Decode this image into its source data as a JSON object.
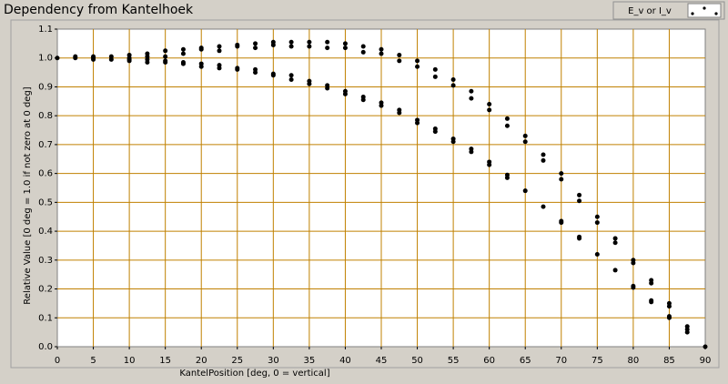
{
  "chart_data": {
    "type": "scatter",
    "title": "Dependency from Kantelhoek",
    "x_label": "KantelPosition [deg, 0 = vertical]",
    "y_label": "Relative Value [0 deg = 1.0 if not zero at 0 deg]",
    "series": [
      {
        "name": "E_v or I_v",
        "color": "#000000",
        "x": [
          0,
          2.5,
          2.5,
          5,
          5,
          5,
          7.5,
          7.5,
          10,
          10,
          10,
          10,
          12.5,
          12.5,
          12.5,
          12.5,
          15,
          15,
          15,
          15,
          17.5,
          17.5,
          17.5,
          17.5,
          20,
          20,
          20,
          20,
          22.5,
          22.5,
          22.5,
          22.5,
          25,
          25,
          25,
          25,
          27.5,
          27.5,
          27.5,
          27.5,
          30,
          30,
          30,
          30,
          32.5,
          32.5,
          32.5,
          32.5,
          35,
          35,
          35,
          35,
          37.5,
          37.5,
          37.5,
          37.5,
          40,
          40,
          40,
          40,
          42.5,
          42.5,
          42.5,
          42.5,
          45,
          45,
          45,
          45,
          47.5,
          47.5,
          47.5,
          47.5,
          50,
          50,
          50,
          50,
          52.5,
          52.5,
          52.5,
          52.5,
          55,
          55,
          55,
          55,
          57.5,
          57.5,
          57.5,
          57.5,
          60,
          60,
          60,
          60,
          62.5,
          62.5,
          62.5,
          62.5,
          65,
          65,
          65,
          67.5,
          67.5,
          67.5,
          70,
          70,
          70,
          70,
          72.5,
          72.5,
          72.5,
          72.5,
          75,
          75,
          75,
          77.5,
          77.5,
          77.5,
          80,
          80,
          80,
          80,
          82.5,
          82.5,
          82.5,
          82.5,
          85,
          85,
          85,
          85,
          87.5,
          87.5,
          87.5,
          90
        ],
        "values": [
          1.0,
          1.005,
          1.0,
          1.005,
          1.0,
          0.995,
          1.005,
          0.995,
          1.01,
          1.0,
          0.995,
          0.99,
          1.015,
          1.005,
          0.995,
          0.985,
          1.025,
          1.005,
          0.99,
          0.985,
          1.03,
          1.015,
          0.985,
          0.98,
          1.035,
          1.03,
          0.98,
          0.97,
          1.04,
          1.025,
          0.975,
          0.965,
          1.045,
          1.04,
          0.965,
          0.96,
          1.05,
          1.035,
          0.96,
          0.95,
          1.055,
          1.045,
          0.945,
          0.94,
          1.055,
          1.04,
          0.94,
          0.925,
          1.055,
          1.04,
          0.92,
          0.91,
          1.055,
          1.035,
          0.905,
          0.895,
          1.05,
          1.035,
          0.885,
          0.875,
          1.04,
          1.02,
          0.865,
          0.855,
          1.03,
          1.015,
          0.845,
          0.835,
          1.01,
          0.99,
          0.82,
          0.81,
          0.99,
          0.97,
          0.785,
          0.775,
          0.96,
          0.935,
          0.755,
          0.745,
          0.925,
          0.905,
          0.72,
          0.71,
          0.885,
          0.86,
          0.685,
          0.675,
          0.84,
          0.82,
          0.64,
          0.63,
          0.79,
          0.765,
          0.595,
          0.585,
          0.73,
          0.71,
          0.54,
          0.665,
          0.645,
          0.485,
          0.6,
          0.58,
          0.435,
          0.43,
          0.525,
          0.505,
          0.38,
          0.375,
          0.45,
          0.43,
          0.32,
          0.375,
          0.36,
          0.265,
          0.3,
          0.29,
          0.21,
          0.205,
          0.23,
          0.22,
          0.16,
          0.155,
          0.15,
          0.14,
          0.105,
          0.1,
          0.07,
          0.06,
          0.05,
          0.0
        ]
      }
    ],
    "xlim": [
      0,
      90
    ],
    "xticks": [
      0,
      5,
      10,
      15,
      20,
      25,
      30,
      35,
      40,
      45,
      50,
      55,
      60,
      65,
      70,
      75,
      80,
      85,
      90
    ],
    "ylim": [
      0,
      1.1
    ],
    "yticks": [
      {
        "value": 0,
        "label": "0.0"
      },
      0.1,
      0.2,
      0.3,
      0.4,
      0.5,
      0.6,
      0.7,
      0.8,
      0.9,
      {
        "value": 1,
        "label": "1.0"
      },
      1.1
    ],
    "grid": true,
    "grid_color": "#c08000",
    "legend": "top-right"
  }
}
